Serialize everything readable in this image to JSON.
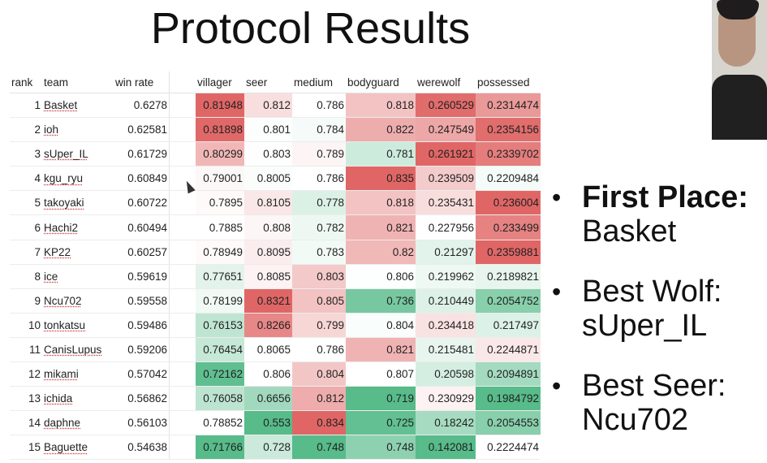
{
  "title": "Protocol Results",
  "columns": [
    "rank",
    "team",
    "win rate",
    "villager",
    "seer",
    "medium",
    "bodyguard",
    "werewolf",
    "possessed"
  ],
  "rows": [
    {
      "rank": "1",
      "team": "Basket",
      "win_rate": "0.6278",
      "villager": "0.81948",
      "seer": "0.812",
      "medium": "0.786",
      "bodyguard": "0.818",
      "werewolf": "0.260529",
      "possessed": "0.2314474"
    },
    {
      "rank": "2",
      "team": "ioh",
      "win_rate": "0.62581",
      "villager": "0.81898",
      "seer": "0.801",
      "medium": "0.784",
      "bodyguard": "0.822",
      "werewolf": "0.247549",
      "possessed": "0.2354156"
    },
    {
      "rank": "3",
      "team": "sUper_IL",
      "win_rate": "0.61729",
      "villager": "0.80299",
      "seer": "0.803",
      "medium": "0.789",
      "bodyguard": "0.781",
      "werewolf": "0.261921",
      "possessed": "0.2339702"
    },
    {
      "rank": "4",
      "team": "kgu_ryu",
      "win_rate": "0.60849",
      "villager": "0.79001",
      "seer": "0.8005",
      "medium": "0.786",
      "bodyguard": "0.835",
      "werewolf": "0.239509",
      "possessed": "0.2209484"
    },
    {
      "rank": "5",
      "team": "takoyaki",
      "win_rate": "0.60722",
      "villager": "0.7895",
      "seer": "0.8105",
      "medium": "0.778",
      "bodyguard": "0.818",
      "werewolf": "0.235431",
      "possessed": "0.236004"
    },
    {
      "rank": "6",
      "team": "Hachi2",
      "win_rate": "0.60494",
      "villager": "0.7885",
      "seer": "0.808",
      "medium": "0.782",
      "bodyguard": "0.821",
      "werewolf": "0.227956",
      "possessed": "0.233499"
    },
    {
      "rank": "7",
      "team": "KP22",
      "win_rate": "0.60257",
      "villager": "0.78949",
      "seer": "0.8095",
      "medium": "0.783",
      "bodyguard": "0.82",
      "werewolf": "0.21297",
      "possessed": "0.2359881"
    },
    {
      "rank": "8",
      "team": "ice",
      "win_rate": "0.59619",
      "villager": "0.77651",
      "seer": "0.8085",
      "medium": "0.803",
      "bodyguard": "0.806",
      "werewolf": "0.219962",
      "possessed": "0.2189821"
    },
    {
      "rank": "9",
      "team": "Ncu702",
      "win_rate": "0.59558",
      "villager": "0.78199",
      "seer": "0.8321",
      "medium": "0.805",
      "bodyguard": "0.736",
      "werewolf": "0.210449",
      "possessed": "0.2054752"
    },
    {
      "rank": "10",
      "team": "tonkatsu",
      "win_rate": "0.59486",
      "villager": "0.76153",
      "seer": "0.8266",
      "medium": "0.799",
      "bodyguard": "0.804",
      "werewolf": "0.234418",
      "possessed": "0.217497"
    },
    {
      "rank": "11",
      "team": "CanisLupus",
      "win_rate": "0.59206",
      "villager": "0.76454",
      "seer": "0.8065",
      "medium": "0.786",
      "bodyguard": "0.821",
      "werewolf": "0.215481",
      "possessed": "0.2244871"
    },
    {
      "rank": "12",
      "team": "mikami",
      "win_rate": "0.57042",
      "villager": "0.72162",
      "seer": "0.806",
      "medium": "0.804",
      "bodyguard": "0.807",
      "werewolf": "0.20598",
      "possessed": "0.2094891"
    },
    {
      "rank": "13",
      "team": "ichida",
      "win_rate": "0.56862",
      "villager": "0.76058",
      "seer": "0.6656",
      "medium": "0.812",
      "bodyguard": "0.719",
      "werewolf": "0.230929",
      "possessed": "0.1984792"
    },
    {
      "rank": "14",
      "team": "daphne",
      "win_rate": "0.56103",
      "villager": "0.78852",
      "seer": "0.553",
      "medium": "0.834",
      "bodyguard": "0.725",
      "werewolf": "0.18242",
      "possessed": "0.2054553"
    },
    {
      "rank": "15",
      "team": "Baguette",
      "win_rate": "0.54638",
      "villager": "0.71766",
      "seer": "0.728",
      "medium": "0.748",
      "bodyguard": "0.748",
      "werewolf": "0.142081",
      "possessed": "0.2224474"
    }
  ],
  "colors": {
    "high": "#e06666",
    "low": "#57bb8a",
    "mid": "#ffffff"
  },
  "bullets": [
    {
      "bold": "First Place:",
      "text": "Basket"
    },
    {
      "bold": "",
      "text": "Best Wolf: sUper_IL"
    },
    {
      "bold": "",
      "text": "Best Seer: Ncu702"
    }
  ]
}
